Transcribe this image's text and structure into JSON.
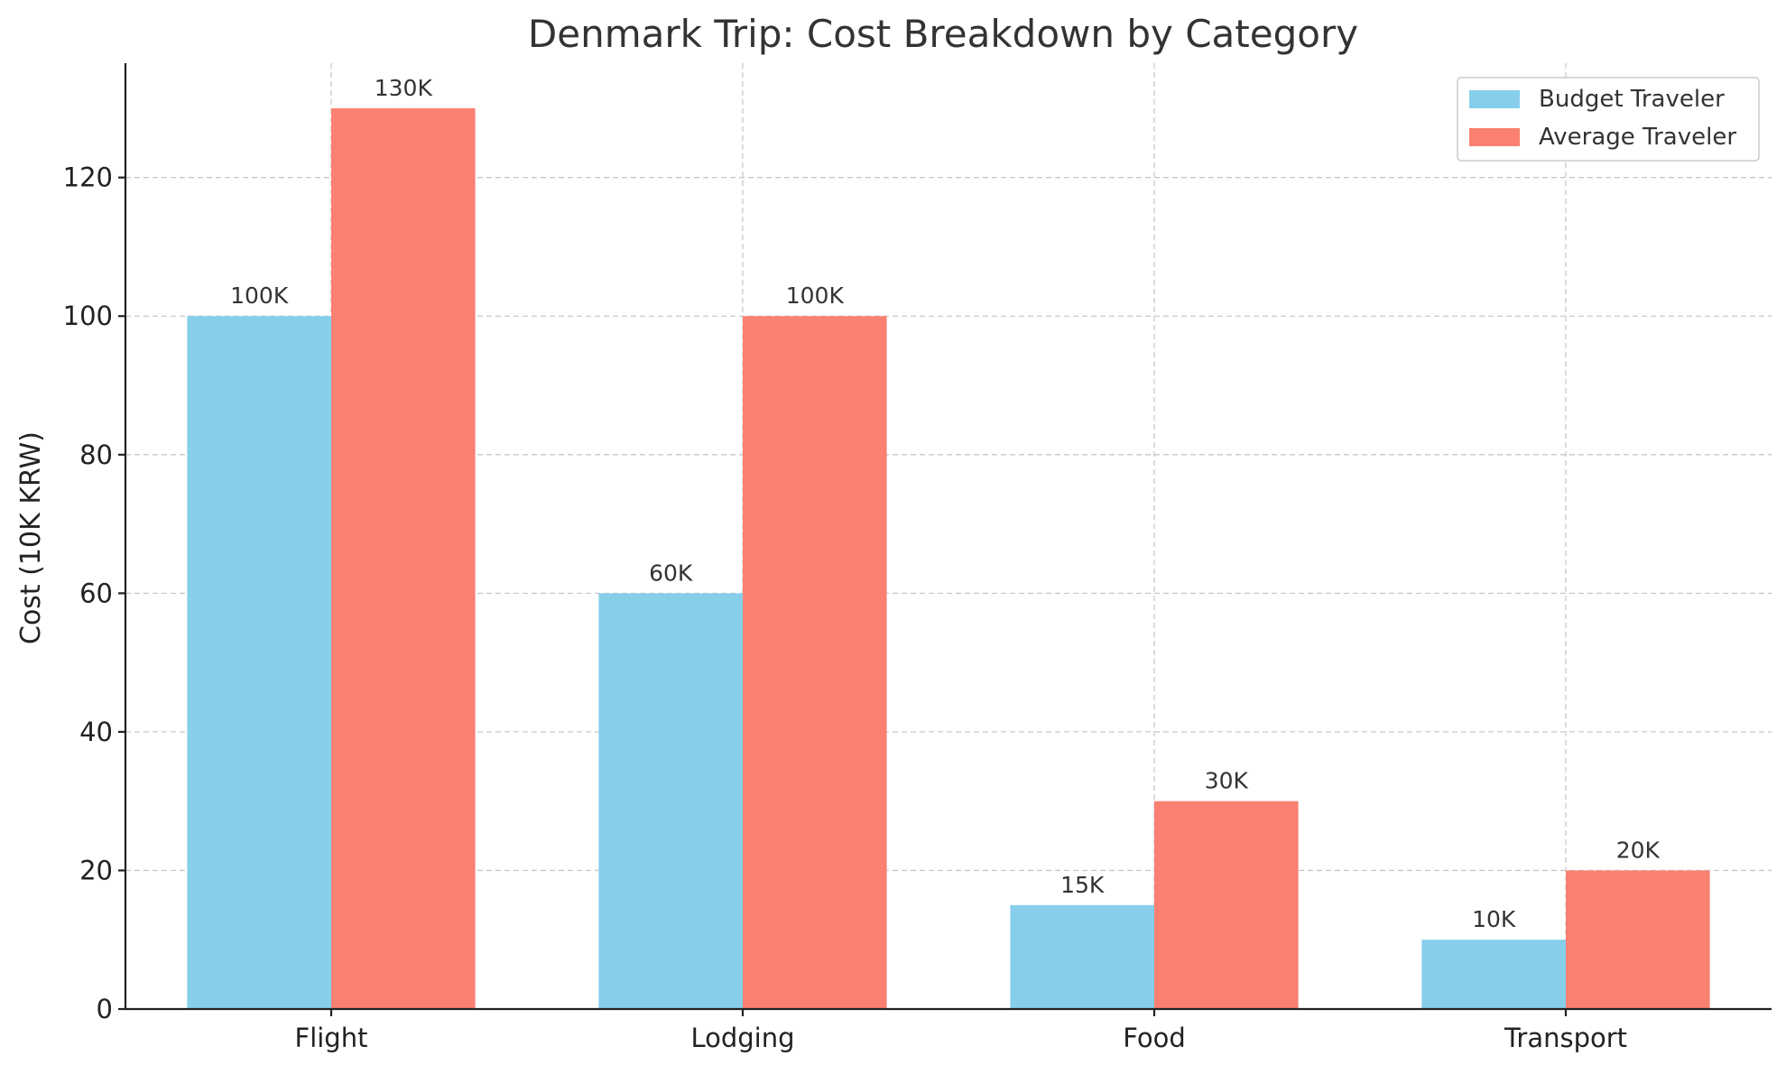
{
  "chart_data": {
    "type": "bar",
    "title": "Denmark Trip: Cost Breakdown by Category",
    "xlabel": "",
    "ylabel": "Cost (10K KRW)",
    "categories": [
      "Flight",
      "Lodging",
      "Food",
      "Transport"
    ],
    "series": [
      {
        "name": "Budget Traveler",
        "color": "#87CEEB",
        "values": [
          100,
          60,
          15,
          10
        ],
        "labels": [
          "100K",
          "60K",
          "15K",
          "10K"
        ]
      },
      {
        "name": "Average Traveler",
        "color": "#FA8072",
        "values": [
          130,
          100,
          30,
          20
        ],
        "labels": [
          "130K",
          "100K",
          "30K",
          "20K"
        ]
      }
    ],
    "ylim": [
      0,
      136.5
    ],
    "yticks": [
      0,
      20,
      40,
      60,
      80,
      100,
      120
    ],
    "grid": true,
    "legend": "top-right"
  }
}
